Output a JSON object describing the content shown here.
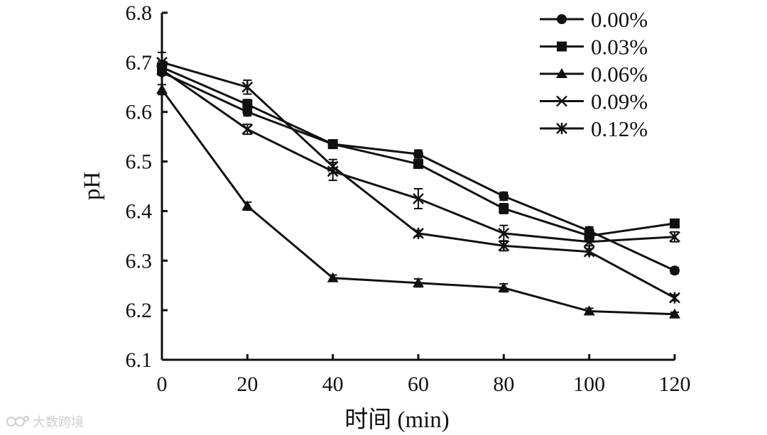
{
  "chart_data": {
    "type": "line",
    "xlabel": "时间 (min)",
    "ylabel": "pH",
    "x": [
      0,
      20,
      40,
      60,
      80,
      100,
      120
    ],
    "xticks": [
      "0",
      "20",
      "40",
      "60",
      "80",
      "100",
      "120"
    ],
    "yticks": [
      "6.1",
      "6.2",
      "6.3",
      "6.4",
      "6.5",
      "6.6",
      "6.7",
      "6.8"
    ],
    "xlim": [
      0,
      120
    ],
    "ylim": [
      6.1,
      6.8
    ],
    "legend_position": "top-right",
    "series": [
      {
        "name": "0.00%",
        "marker": "circle",
        "values": [
          6.68,
          6.6,
          6.535,
          6.515,
          6.43,
          6.36,
          6.28
        ],
        "errors": [
          0.006,
          0.008,
          0.006,
          0.008,
          0.008,
          0.008,
          0.006
        ]
      },
      {
        "name": "0.03%",
        "marker": "square",
        "values": [
          6.69,
          6.615,
          6.535,
          6.495,
          6.405,
          6.35,
          6.375
        ],
        "errors": [
          0.012,
          0.01,
          0.008,
          0.008,
          0.01,
          0.008,
          0.008
        ]
      },
      {
        "name": "0.06%",
        "marker": "triangle",
        "values": [
          6.645,
          6.41,
          6.265,
          6.255,
          6.245,
          6.198,
          6.192
        ],
        "errors": [
          0.01,
          0.008,
          0.006,
          0.008,
          0.008,
          0.006,
          0.004
        ]
      },
      {
        "name": "0.09%",
        "marker": "x",
        "values": [
          6.685,
          6.565,
          6.48,
          6.425,
          6.355,
          6.338,
          6.348
        ],
        "errors": [
          0.01,
          0.01,
          0.018,
          0.02,
          0.016,
          0.008,
          0.01
        ]
      },
      {
        "name": "0.12%",
        "marker": "asterisk",
        "values": [
          6.7,
          6.65,
          6.49,
          6.355,
          6.33,
          6.318,
          6.225
        ],
        "errors": [
          0.02,
          0.014,
          0.014,
          0.006,
          0.01,
          0.006,
          0.006
        ]
      }
    ]
  },
  "watermark": {
    "text": "大数跨境",
    "icon": "logo-icon"
  },
  "colors": {
    "ink": "#111111",
    "watermark": "#c9c9c9"
  }
}
